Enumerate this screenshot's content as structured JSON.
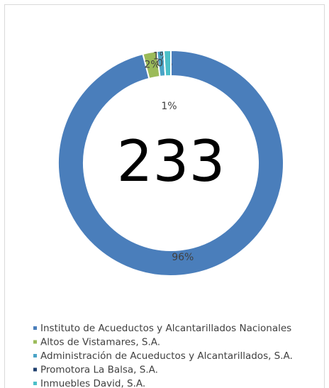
{
  "chart_data": {
    "type": "donut",
    "total": 233,
    "categories": [
      "Instituto de Acueductos y Alcantarillados Nacionales",
      "Altos de Vistamares, S.A.",
      "Administración de Acueductos y Alcantarillados, S.A.",
      "Promotora La Balsa, S.A.",
      "Inmuebles David, S.A."
    ],
    "values": [
      96,
      2,
      1,
      0,
      1
    ],
    "value_labels": [
      "96%",
      "2%",
      "1%",
      "0%",
      "1%"
    ],
    "colors": [
      "#4a7ebb",
      "#9bbb59",
      "#4aa3c6",
      "#1f3f6e",
      "#4bc0c8"
    ],
    "legend": "bottom"
  }
}
